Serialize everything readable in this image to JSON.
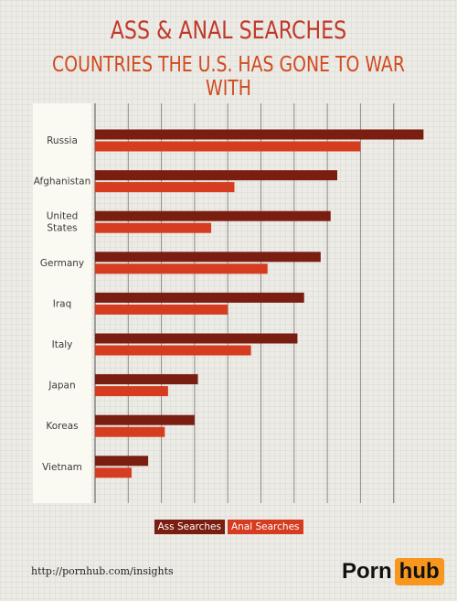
{
  "header": {
    "title": "ASS & ANAL SEARCHES",
    "subtitle": "COUNTRIES THE U.S. HAS GONE TO WAR WITH"
  },
  "colors": {
    "ass": "#7a1e12",
    "anal": "#d63c1f"
  },
  "chart_data": {
    "type": "bar",
    "orientation": "horizontal",
    "title": "ASS & ANAL SEARCHES",
    "subtitle": "COUNTRIES THE U.S. HAS GONE TO WAR WITH",
    "categories": [
      "Russia",
      "Afghanistan",
      "United States",
      "Germany",
      "Iraq",
      "Italy",
      "Japan",
      "Koreas",
      "Vietnam"
    ],
    "series": [
      {
        "name": "Ass Searches",
        "color": "#7a1e12",
        "values": [
          99,
          73,
          71,
          68,
          63,
          61,
          31,
          30,
          16
        ]
      },
      {
        "name": "Anal Searches",
        "color": "#d63c1f",
        "values": [
          80,
          42,
          35,
          52,
          40,
          47,
          22,
          21,
          11
        ]
      }
    ],
    "xlim": [
      0,
      100
    ],
    "grid": true,
    "legend": "bottom",
    "xlabel": "",
    "ylabel": ""
  },
  "legend": {
    "items": [
      "Ass Searches",
      "Anal Searches"
    ]
  },
  "footer": {
    "url": "http://pornhub.com/insights",
    "logo_left": "Porn",
    "logo_right": "hub"
  }
}
